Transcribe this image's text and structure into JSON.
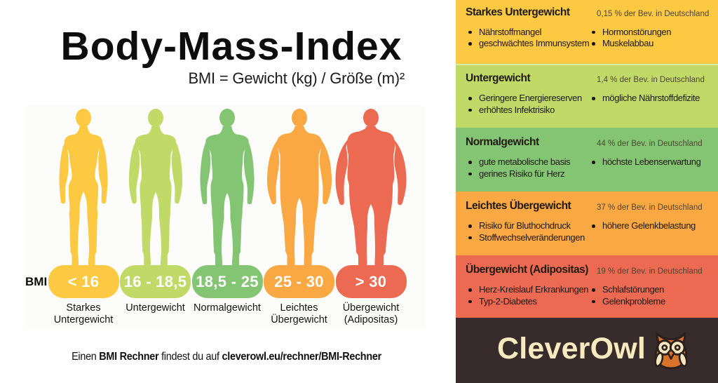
{
  "title": "Body-Mass-Index",
  "subtitle": "BMI = Gewicht (kg) / Größe (m)²",
  "bmi_axis_label": "BMI",
  "caption": {
    "part1": "Einen ",
    "bold1": "BMI Rechner",
    "part2": " findest du auf ",
    "bold2": "cleverowl.eu/rechner/BMI-Rechner"
  },
  "figures": [
    {
      "range": "< 16",
      "label_line1": "Starkes",
      "label_line2": "Untergewicht",
      "color": "#FDC943"
    },
    {
      "range": "16 - 18,5",
      "label_line1": "Untergewicht",
      "label_line2": "",
      "color": "#C1DA67"
    },
    {
      "range": "18,5 - 25",
      "label_line1": "Normalgewicht",
      "label_line2": "",
      "color": "#84C573"
    },
    {
      "range": "25 - 30",
      "label_line1": "Leichtes",
      "label_line2": "Übergewicht",
      "color": "#FAA843"
    },
    {
      "range": "> 30",
      "label_line1": "Übergewicht",
      "label_line2": "(Adipositas)",
      "color": "#EC6A52"
    }
  ],
  "panels": [
    {
      "title": "Starkes Untergewicht",
      "stat": "0,15 % der Bev. in Deutschland",
      "color": "#FDC943",
      "col1": [
        "Nährstoffmangel",
        "geschwächtes Immunsystem"
      ],
      "col2": [
        "Hormonstörungen",
        "Muskelabbau"
      ]
    },
    {
      "title": "Untergewicht",
      "stat": "1,4 % der Bev. in Deutschland",
      "color": "#C1DA67",
      "col1": [
        "Geringere Energiereserven",
        "erhöhtes Infektrisiko"
      ],
      "col2": [
        "mögliche Nährstoffdefizite"
      ]
    },
    {
      "title": "Normalgewicht",
      "stat": "44 % der Bev. in Deutschland",
      "color": "#84C573",
      "col1": [
        "gute metabolische basis",
        "gerines Risiko für Herz"
      ],
      "col2": [
        "höchste Lebenserwartung"
      ]
    },
    {
      "title": "Leichtes Übergewicht",
      "stat": "37 % der Bev. in Deutschland",
      "color": "#FAA843",
      "col1": [
        "Risiko für Bluthochdruck",
        "Stoffwechselveränderungen"
      ],
      "col2": [
        "höhere Gelenkbelastung"
      ]
    },
    {
      "title": "Übergewicht (Adipositas)",
      "stat": "19 % der Bev. in Deutschland",
      "color": "#EC6A52",
      "col1": [
        "Herz-Kreislauf Erkrankungen",
        "Typ-2-Diabetes"
      ],
      "col2": [
        "Schlafstörungen",
        "Gelenkprobleme"
      ]
    }
  ],
  "footer": {
    "brand": "CleverOwl",
    "background": "#372C2B",
    "text_color": "#F8E9BE",
    "owl_body": "#D9732A",
    "owl_cream": "#F6E8BE",
    "owl_outline": "#2A201D"
  }
}
